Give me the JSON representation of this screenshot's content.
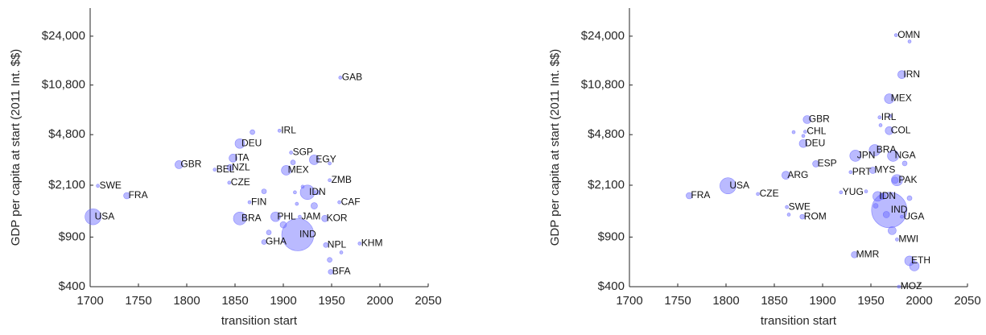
{
  "chart_data": [
    {
      "type": "scatter",
      "xlabel": "transition start",
      "ylabel": "GDP per capita at start (2011 Int. $$)",
      "xlim": [
        1700,
        2050
      ],
      "xticks": [
        1700,
        1750,
        1800,
        1850,
        1900,
        1950,
        2000,
        2050
      ],
      "ylim": [
        400,
        38000
      ],
      "log_y": true,
      "yticks": [
        {
          "value": 400,
          "label": "$400"
        },
        {
          "value": 900,
          "label": "$900"
        },
        {
          "value": 2100,
          "label": "$2,100"
        },
        {
          "value": 4800,
          "label": "$4,800"
        },
        {
          "value": 10800,
          "label": "$10,800"
        },
        {
          "value": 24000,
          "label": "$24,000"
        }
      ],
      "color": "#6666ff",
      "series": [
        {
          "labels": [
            "USA",
            "SWE",
            "FRA",
            "GBR",
            "BEL",
            "NZL",
            "ITA",
            "CZE",
            "DEU",
            "IRL",
            "SGP",
            "EGY",
            "MEX",
            "ZMB",
            "IDN",
            "FIN",
            "CAF",
            "JAM",
            "KOR",
            "BRA",
            "PHL",
            "IND",
            "GHA",
            "NPL",
            "KHM",
            "BFA",
            "GAB",
            null,
            null,
            null,
            null,
            null,
            null,
            null,
            null,
            null,
            null,
            null,
            null,
            null
          ],
          "x": [
            1703,
            1708,
            1738,
            1792,
            1829,
            1845,
            1848,
            1844,
            1855,
            1896,
            1908,
            1932,
            1903,
            1948,
            1925,
            1865,
            1958,
            1917,
            1943,
            1855,
            1892,
            1915,
            1880,
            1944,
            1979,
            1949,
            1959,
            1868,
            1935,
            1920,
            1912,
            1948,
            1948,
            1960,
            1885,
            1900,
            1932,
            1914,
            1910,
            1880
          ],
          "values": [
            1255,
            2080,
            1770,
            2940,
            2710,
            2800,
            3270,
            2190,
            4150,
            5120,
            3580,
            3180,
            2680,
            2280,
            1870,
            1590,
            1590,
            1255,
            1220,
            1220,
            1255,
            935,
            830,
            790,
            810,
            510,
            12200,
            5000,
            1870,
            2050,
            1870,
            3000,
            620,
            700,
            970,
            1100,
            1500,
            1550,
            3050,
            1900
          ],
          "sizes": [
            10,
            2,
            4,
            5,
            2,
            4,
            5,
            2,
            6,
            2,
            2,
            6,
            6,
            2,
            9,
            2,
            2,
            2,
            4,
            8,
            6,
            20,
            3,
            3,
            2,
            3,
            2,
            3,
            3,
            2,
            2,
            2,
            3,
            2,
            3,
            4,
            4,
            2,
            3,
            3
          ]
        }
      ]
    },
    {
      "type": "scatter",
      "xlabel": "transition start",
      "ylabel": "GDP per capita at start (2011 Int. $$)",
      "xlim": [
        1700,
        2050
      ],
      "xticks": [
        1700,
        1750,
        1800,
        1850,
        1900,
        1950,
        2000,
        2050
      ],
      "ylim": [
        400,
        38000
      ],
      "log_y": true,
      "yticks": [
        {
          "value": 400,
          "label": "$400"
        },
        {
          "value": 900,
          "label": "$900"
        },
        {
          "value": 2100,
          "label": "$2,100"
        },
        {
          "value": 4800,
          "label": "$4,800"
        },
        {
          "value": 10800,
          "label": "$10,800"
        },
        {
          "value": 24000,
          "label": "$24,000"
        }
      ],
      "color": "#6666ff",
      "series": [
        {
          "labels": [
            "OMN",
            "IRN",
            "MEX",
            "IRL",
            "GBR",
            "COL",
            "CHL",
            "DEU",
            "BRA",
            "JPN",
            "NGA",
            "ESP",
            "MYS",
            "PRT",
            "PAK",
            "ARG",
            "USA",
            "FRA",
            "CZE",
            "SWE",
            "YUG",
            "IDN",
            "IND",
            "UGA",
            "ROM",
            "MWI",
            "MMR",
            "ETH",
            "MOZ",
            null,
            null,
            null,
            null,
            null,
            null,
            null,
            null,
            null,
            null,
            null,
            null,
            null,
            null,
            null
          ],
          "x": [
            1976,
            1982,
            1969,
            1959,
            1884,
            1969,
            1882,
            1880,
            1954,
            1934,
            1973,
            1893,
            1952,
            1929,
            1977,
            1862,
            1802,
            1762,
            1833,
            1863,
            1919,
            1957,
            1969,
            1982,
            1879,
            1977,
            1933,
            1990,
            1979,
            1995,
            1972,
            1962,
            1966,
            1975,
            1990,
            1985,
            1960,
            1990,
            1970,
            1945,
            1955,
            1870,
            1880,
            1865
          ],
          "values": [
            24400,
            12800,
            8640,
            6370,
            6140,
            5120,
            5040,
            4150,
            3720,
            3400,
            3400,
            2980,
            2680,
            2600,
            2280,
            2470,
            2080,
            1770,
            1820,
            1470,
            1870,
            1750,
            1400,
            1255,
            1255,
            865,
            675,
            610,
            400,
            560,
            1000,
            1750,
            1300,
            2280,
            1700,
            3000,
            5600,
            22000,
            6500,
            1900,
            1500,
            5000,
            4700,
            1300
          ],
          "sizes": [
            2,
            5,
            6,
            2,
            5,
            5,
            2,
            5,
            7,
            7,
            7,
            4,
            4,
            2,
            7,
            5,
            10,
            4,
            2,
            2,
            2,
            6,
            22,
            2,
            3,
            2,
            4,
            6,
            2,
            6,
            5,
            4,
            4,
            4,
            3,
            3,
            2,
            2,
            2,
            2,
            3,
            2,
            2,
            2
          ]
        }
      ]
    }
  ]
}
